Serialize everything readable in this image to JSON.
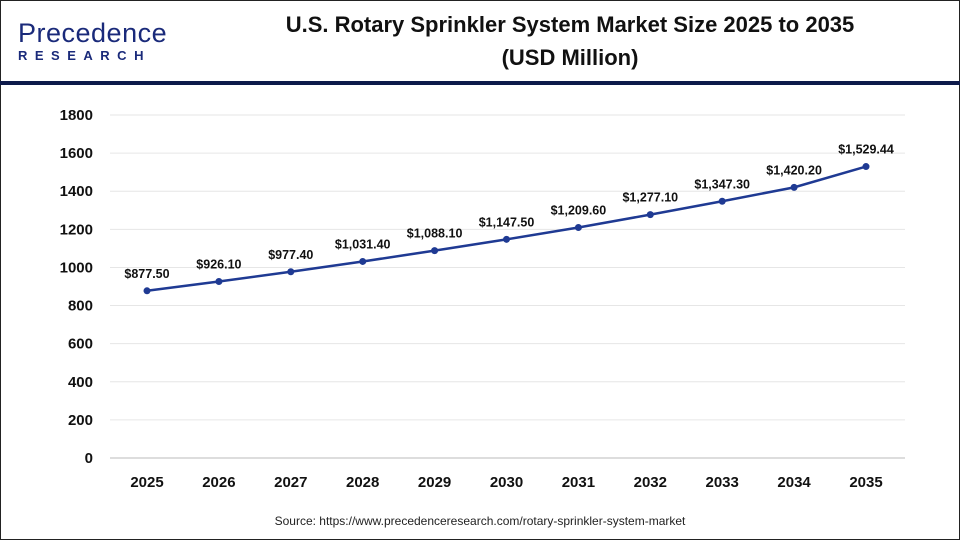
{
  "logo": {
    "main": "Precedence",
    "sub": "RESEARCH"
  },
  "title_line1": "U.S. Rotary Sprinkler System Market Size 2025 to 2035",
  "title_line2": "(USD Million)",
  "source": "Source: https://www.precedenceresearch.com/rotary-sprinkler-system-market",
  "colors": {
    "line": "#1f3a93",
    "header_rule": "#0d1a4a",
    "grid": "#e6e6e6"
  },
  "chart_data": {
    "type": "line",
    "title": "U.S. Rotary Sprinkler System Market Size 2025 to 2035 (USD Million)",
    "categories": [
      "2025",
      "2026",
      "2027",
      "2028",
      "2029",
      "2030",
      "2031",
      "2032",
      "2033",
      "2034",
      "2035"
    ],
    "values": [
      877.5,
      926.1,
      977.4,
      1031.4,
      1088.1,
      1147.5,
      1209.6,
      1277.1,
      1347.3,
      1420.2,
      1529.44
    ],
    "data_labels": [
      "$877.50",
      "$926.10",
      "$977.40",
      "$1,031.40",
      "$1,088.10",
      "$1,147.50",
      "$1,209.60",
      "$1,277.10",
      "$1,347.30",
      "$1,420.20",
      "$1,529.44"
    ],
    "yticks": [
      0,
      200,
      400,
      600,
      800,
      1000,
      1200,
      1400,
      1600,
      1800
    ],
    "ylim": [
      0,
      1800
    ],
    "grid": true,
    "legend": "none",
    "xlabel": "",
    "ylabel": ""
  }
}
